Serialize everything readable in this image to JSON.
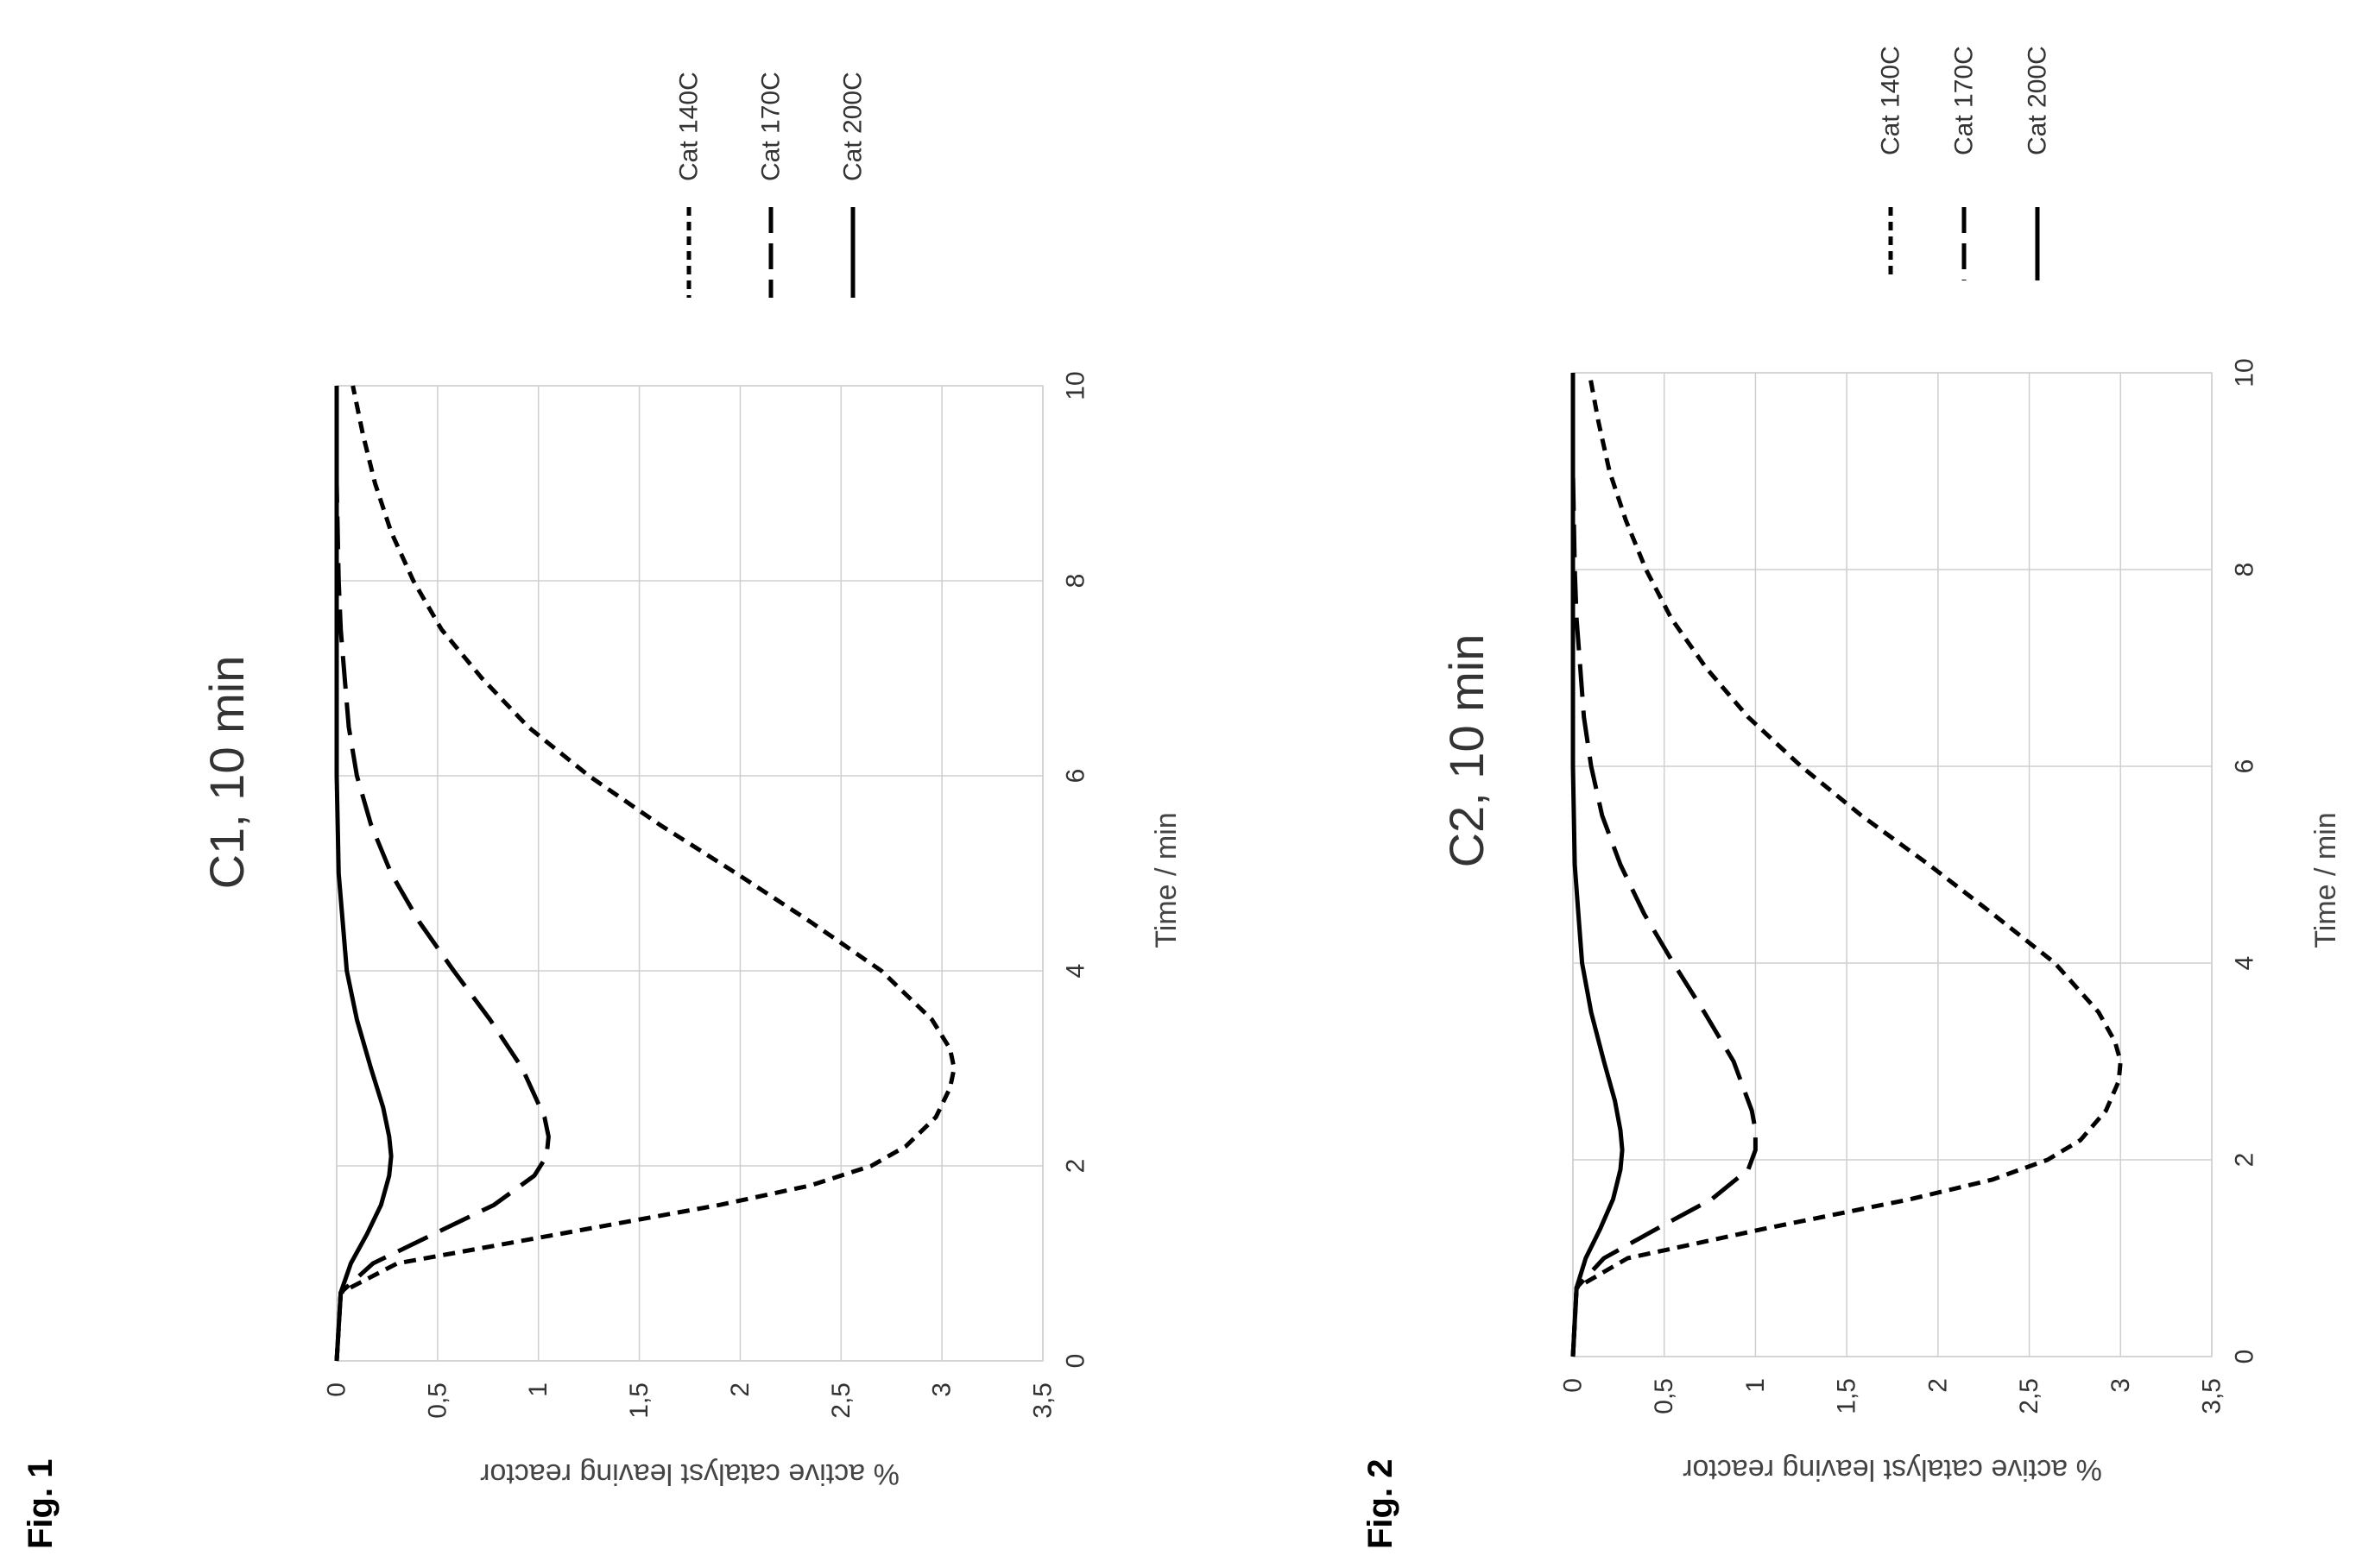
{
  "figures": [
    {
      "label": "Fig. 1"
    },
    {
      "label": "Fig. 2"
    }
  ],
  "chart_data": [
    {
      "type": "line",
      "title": "C1, 10 min",
      "xlabel": "Time / min",
      "ylabel": "% active catalyst leaving reactor",
      "xlim": [
        0,
        10
      ],
      "ylim": [
        0,
        3.5
      ],
      "x_ticks": [
        "0",
        "2",
        "4",
        "6",
        "8",
        "10"
      ],
      "y_ticks": [
        "0",
        "0,5",
        "1",
        "1,5",
        "2",
        "2,5",
        "3",
        "3,5"
      ],
      "grid": true,
      "legend": "top-right",
      "series": [
        {
          "name": "Cat 140C",
          "dash": "short-dash",
          "x": [
            0,
            0.7,
            1.0,
            1.3,
            1.6,
            1.8,
            2.0,
            2.2,
            2.5,
            2.8,
            3.0,
            3.2,
            3.5,
            4.0,
            4.5,
            5.0,
            5.5,
            6.0,
            6.5,
            7.0,
            7.5,
            8.0,
            8.5,
            9.0,
            9.5,
            10.0
          ],
          "y": [
            0,
            0.02,
            0.3,
            1.1,
            1.9,
            2.35,
            2.65,
            2.82,
            2.97,
            3.04,
            3.06,
            3.04,
            2.95,
            2.7,
            2.35,
            1.98,
            1.6,
            1.25,
            0.95,
            0.72,
            0.52,
            0.38,
            0.27,
            0.19,
            0.13,
            0.08
          ]
        },
        {
          "name": "Cat 170C",
          "dash": "long-dash",
          "x": [
            0,
            0.7,
            1.0,
            1.3,
            1.6,
            1.9,
            2.1,
            2.3,
            2.5,
            3.0,
            3.5,
            4.0,
            4.5,
            5.0,
            5.5,
            6.0,
            6.5,
            7.0,
            7.5,
            8.0,
            9.0,
            10.0
          ],
          "y": [
            0,
            0.02,
            0.18,
            0.48,
            0.78,
            0.98,
            1.04,
            1.05,
            1.03,
            0.92,
            0.76,
            0.58,
            0.41,
            0.27,
            0.17,
            0.1,
            0.06,
            0.04,
            0.02,
            0.01,
            0.0,
            0.0
          ]
        },
        {
          "name": "Cat 200C",
          "dash": "solid",
          "x": [
            0,
            0.7,
            1.0,
            1.3,
            1.6,
            1.9,
            2.1,
            2.3,
            2.6,
            3.0,
            3.5,
            4.0,
            4.5,
            5.0,
            6.0,
            7.0,
            8.0,
            9.0,
            10.0
          ],
          "y": [
            0,
            0.02,
            0.07,
            0.15,
            0.22,
            0.26,
            0.27,
            0.26,
            0.23,
            0.17,
            0.1,
            0.05,
            0.03,
            0.01,
            0.0,
            0.0,
            0.0,
            0.0,
            0.0
          ]
        }
      ]
    },
    {
      "type": "line",
      "title": "C2, 10 min",
      "xlabel": "Time / min",
      "ylabel": "% active catalyst leaving reactor",
      "xlim": [
        0,
        10
      ],
      "ylim": [
        0,
        3.5
      ],
      "x_ticks": [
        "0",
        "2",
        "4",
        "6",
        "8",
        "10"
      ],
      "y_ticks": [
        "0",
        "0,5",
        "1",
        "1,5",
        "2",
        "2,5",
        "3",
        "3,5"
      ],
      "grid": true,
      "legend": "top-right",
      "series": [
        {
          "name": "Cat 140C",
          "dash": "short-dash",
          "x": [
            0,
            0.7,
            1.0,
            1.3,
            1.6,
            1.8,
            2.0,
            2.2,
            2.5,
            2.8,
            3.0,
            3.2,
            3.5,
            4.0,
            4.5,
            5.0,
            5.5,
            6.0,
            6.5,
            7.0,
            7.5,
            8.0,
            8.5,
            9.0,
            9.5,
            10.0
          ],
          "y": [
            0,
            0.02,
            0.3,
            1.05,
            1.85,
            2.3,
            2.6,
            2.78,
            2.92,
            2.99,
            3.0,
            2.97,
            2.88,
            2.64,
            2.3,
            1.95,
            1.58,
            1.25,
            0.96,
            0.73,
            0.54,
            0.4,
            0.29,
            0.2,
            0.14,
            0.09
          ]
        },
        {
          "name": "Cat 170C",
          "dash": "long-dash",
          "x": [
            0,
            0.7,
            1.0,
            1.3,
            1.6,
            1.9,
            2.1,
            2.3,
            2.5,
            3.0,
            3.5,
            4.0,
            4.5,
            5.0,
            5.5,
            6.0,
            6.5,
            7.0,
            7.5,
            8.0,
            9.0,
            10.0
          ],
          "y": [
            0,
            0.02,
            0.17,
            0.46,
            0.76,
            0.96,
            1.0,
            1.0,
            0.98,
            0.88,
            0.72,
            0.55,
            0.39,
            0.26,
            0.16,
            0.1,
            0.06,
            0.04,
            0.02,
            0.01,
            0.0,
            0.0
          ]
        },
        {
          "name": "Cat 200C",
          "dash": "solid",
          "x": [
            0,
            0.7,
            1.0,
            1.3,
            1.6,
            1.9,
            2.1,
            2.3,
            2.6,
            3.0,
            3.5,
            4.0,
            4.5,
            5.0,
            6.0,
            7.0,
            8.0,
            9.0,
            10.0
          ],
          "y": [
            0,
            0.02,
            0.07,
            0.15,
            0.22,
            0.26,
            0.27,
            0.26,
            0.23,
            0.17,
            0.1,
            0.05,
            0.03,
            0.01,
            0.0,
            0.0,
            0.0,
            0.0,
            0.0
          ]
        }
      ]
    }
  ]
}
